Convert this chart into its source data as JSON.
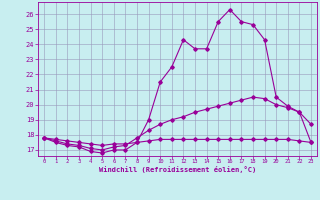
{
  "xlabel": "Windchill (Refroidissement éolien,°C)",
  "background_color": "#c8eef0",
  "line_color": "#990099",
  "grid_color": "#9999bb",
  "xlim": [
    -0.5,
    23.5
  ],
  "ylim": [
    16.6,
    26.8
  ],
  "yticks": [
    17,
    18,
    19,
    20,
    21,
    22,
    23,
    24,
    25,
    26
  ],
  "xticks": [
    0,
    1,
    2,
    3,
    4,
    5,
    6,
    7,
    8,
    9,
    10,
    11,
    12,
    13,
    14,
    15,
    16,
    17,
    18,
    19,
    20,
    21,
    22,
    23
  ],
  "line1_x": [
    0,
    1,
    2,
    3,
    4,
    5,
    6,
    7,
    8,
    9,
    10,
    11,
    12,
    13,
    14,
    15,
    16,
    17,
    18,
    19,
    20,
    21,
    22,
    23
  ],
  "line1_y": [
    17.8,
    17.5,
    17.3,
    17.2,
    16.9,
    16.8,
    17.0,
    17.0,
    17.5,
    19.0,
    21.5,
    22.5,
    24.3,
    23.7,
    23.7,
    25.5,
    26.3,
    25.5,
    25.3,
    24.3,
    20.5,
    19.9,
    19.5,
    18.7
  ],
  "line2_x": [
    0,
    1,
    2,
    3,
    4,
    5,
    6,
    7,
    8,
    9,
    10,
    11,
    12,
    13,
    14,
    15,
    16,
    17,
    18,
    19,
    20,
    21,
    22,
    23
  ],
  "line2_y": [
    17.8,
    17.6,
    17.4,
    17.3,
    17.1,
    17.0,
    17.2,
    17.3,
    17.8,
    18.3,
    18.7,
    19.0,
    19.2,
    19.5,
    19.7,
    19.9,
    20.1,
    20.3,
    20.5,
    20.4,
    20.0,
    19.8,
    19.5,
    17.5
  ],
  "line3_x": [
    0,
    1,
    2,
    3,
    4,
    5,
    6,
    7,
    8,
    9,
    10,
    11,
    12,
    13,
    14,
    15,
    16,
    17,
    18,
    19,
    20,
    21,
    22,
    23
  ],
  "line3_y": [
    17.8,
    17.7,
    17.6,
    17.5,
    17.4,
    17.3,
    17.4,
    17.4,
    17.5,
    17.6,
    17.7,
    17.7,
    17.7,
    17.7,
    17.7,
    17.7,
    17.7,
    17.7,
    17.7,
    17.7,
    17.7,
    17.7,
    17.6,
    17.5
  ]
}
